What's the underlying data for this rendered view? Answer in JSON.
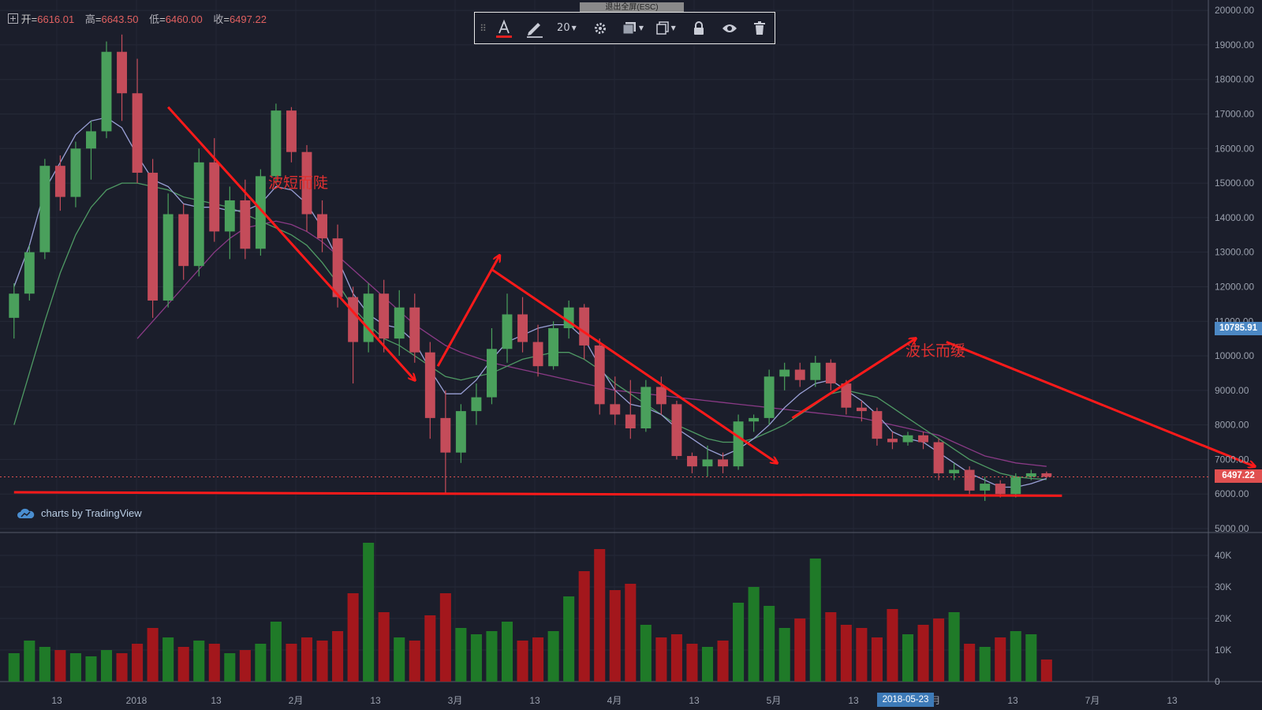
{
  "ohlc_header": {
    "open_label": "开",
    "open": "6616.01",
    "high_label": "高",
    "high": "6643.50",
    "low_label": "低",
    "low": "6460.00",
    "close_label": "收",
    "close": "6497.22"
  },
  "exit_fullscreen": "退出全屏(ESC)",
  "toolbar": {
    "drag_icon": "drag-handle-icon",
    "text_icon": "text-tool-icon",
    "brush_icon": "brush-icon",
    "size_value": "20",
    "settings_icon": "gear-icon",
    "layer_icon": "layer-icon",
    "clone_icon": "clone-icon",
    "lock_icon": "lock-icon",
    "visibility_icon": "eye-icon",
    "delete_icon": "trash-icon",
    "accent_color": "#e02020"
  },
  "branding": {
    "label": "charts by TradingView",
    "icon": "tradingview-cloud-icon"
  },
  "annotations": {
    "left_text": "波短而陡",
    "right_text": "波长而缓"
  },
  "price_tags": {
    "crosshair_price": "10785.91",
    "last_price": "6497.22"
  },
  "date_tag": "2018-05-23",
  "colors": {
    "background": "#1b1e2b",
    "up": "#4aa05c",
    "down": "#c44c5a",
    "vol_up": "#1f7a28",
    "vol_down": "#a3171c",
    "trend_line": "#ff1a1a",
    "ma_fast": "#9aa0d6",
    "ma_mid": "#4f9a64",
    "ma_slow": "#8a3a86",
    "crosshair_tag": "#4c88c4",
    "last_tag": "#e05050"
  },
  "chart_data": {
    "type": "candlestick",
    "title": "",
    "price_axis": {
      "ticks": [
        "5000.00",
        "6000.00",
        "7000.00",
        "8000.00",
        "9000.00",
        "10000.00",
        "11000.00",
        "12000.00",
        "13000.00",
        "14000.00",
        "15000.00",
        "16000.00",
        "17000.00",
        "18000.00",
        "19000.00",
        "20000.00"
      ],
      "ylim": [
        5000,
        20300
      ]
    },
    "volume_axis": {
      "ticks": [
        "0",
        "10K",
        "20K",
        "30K",
        "40K"
      ],
      "ylim": [
        0,
        46000
      ]
    },
    "time_axis": {
      "ticks": [
        "13",
        "2018",
        "13",
        "2月",
        "13",
        "3月",
        "13",
        "4月",
        "13",
        "5月",
        "13",
        "6月",
        "13",
        "7月",
        "13"
      ]
    },
    "x_unit": "days since 2017-12-07 (bar index)",
    "candles": [
      [
        3.0,
        11100,
        12100,
        10500,
        11800
      ],
      [
        1.0,
        11800,
        13200,
        11600,
        13000
      ],
      [
        5.0,
        13000,
        15700,
        12800,
        15500
      ],
      [
        3.0,
        15500,
        15800,
        14200,
        14600
      ],
      [
        2.0,
        14600,
        16200,
        14300,
        16000
      ],
      [
        4.0,
        16000,
        16800,
        15100,
        16500
      ],
      [
        4.0,
        16500,
        19100,
        16300,
        18800
      ],
      [
        3.0,
        18800,
        19300,
        16800,
        17600
      ],
      [
        2.0,
        17600,
        18600,
        15000,
        15300
      ],
      [
        4.0,
        15300,
        15700,
        11100,
        11600
      ],
      [
        2.0,
        11600,
        14700,
        11400,
        14100
      ],
      [
        5.0,
        14100,
        14400,
        12200,
        12600
      ],
      [
        4.0,
        12600,
        16000,
        12300,
        15600
      ],
      [
        3.0,
        15600,
        16300,
        13300,
        13600
      ],
      [
        5.0,
        13600,
        14900,
        12800,
        14500
      ],
      [
        4.0,
        14500,
        15100,
        12800,
        13100
      ],
      [
        5.0,
        13100,
        15400,
        12900,
        15200
      ],
      [
        3.0,
        15200,
        17300,
        15000,
        17100
      ],
      [
        2.0,
        17100,
        17200,
        15600,
        15900
      ],
      [
        4.0,
        15900,
        16100,
        13600,
        14100
      ],
      [
        5.0,
        14100,
        14500,
        13000,
        13400
      ],
      [
        5.0,
        13400,
        13800,
        11400,
        11700
      ],
      [
        4.0,
        11700,
        12000,
        9200,
        10400
      ],
      [
        5.0,
        10400,
        12100,
        10100,
        11800
      ],
      [
        4.0,
        11800,
        12200,
        10100,
        10500
      ],
      [
        5.0,
        10500,
        11900,
        10000,
        11400
      ],
      [
        4.0,
        11400,
        11800,
        9800,
        10100
      ],
      [
        4.0,
        10100,
        10400,
        7600,
        8200
      ],
      [
        3.0,
        8200,
        9000,
        6000,
        7200
      ],
      [
        5.0,
        7200,
        8600,
        6900,
        8400
      ],
      [
        3.0,
        8400,
        9200,
        8000,
        8800
      ],
      [
        4.0,
        8800,
        10800,
        8600,
        10200
      ],
      [
        5.0,
        10200,
        11800,
        9800,
        11200
      ],
      [
        3.0,
        11200,
        11700,
        10100,
        10400
      ],
      [
        5.0,
        10400,
        10900,
        9400,
        9700
      ],
      [
        4.0,
        9700,
        11000,
        9600,
        10800
      ],
      [
        4.0,
        10800,
        11600,
        10500,
        11400
      ],
      [
        5.0,
        11400,
        11500,
        9900,
        10300
      ],
      [
        5.0,
        10300,
        10500,
        8300,
        8600
      ],
      [
        4.0,
        8600,
        9400,
        8000,
        8300
      ],
      [
        5.0,
        8300,
        9300,
        7600,
        7900
      ],
      [
        4.0,
        7900,
        9300,
        7800,
        9100
      ],
      [
        4.0,
        9100,
        9400,
        8300,
        8600
      ],
      [
        5.0,
        8600,
        8700,
        7000,
        7100
      ],
      [
        4.0,
        7100,
        7200,
        6600,
        6800
      ],
      [
        5.0,
        6800,
        7400,
        6500,
        7000
      ],
      [
        5.0,
        7000,
        7200,
        6600,
        6800
      ],
      [
        4.0,
        6800,
        8300,
        6700,
        8100
      ],
      [
        5.0,
        8100,
        8300,
        7800,
        8200
      ],
      [
        3.0,
        8200,
        9600,
        8000,
        9400
      ],
      [
        4.0,
        9400,
        9800,
        9000,
        9600
      ],
      [
        5.0,
        9600,
        9800,
        9100,
        9300
      ],
      [
        3.0,
        9300,
        10000,
        9100,
        9800
      ],
      [
        3.0,
        9800,
        9900,
        9000,
        9200
      ],
      [
        3.0,
        9200,
        9300,
        8300,
        8500
      ],
      [
        4.0,
        8500,
        8700,
        8100,
        8400
      ],
      [
        4.0,
        8400,
        8500,
        7400,
        7600
      ],
      [
        3.0,
        7600,
        7800,
        7300,
        7500
      ],
      [
        5.0,
        7500,
        7800,
        7400,
        7700
      ],
      [
        4.0,
        7700,
        7800,
        7300,
        7500
      ],
      [
        4.0,
        7500,
        7600,
        6400,
        6600
      ],
      [
        3.0,
        6600,
        6900,
        6400,
        6700
      ],
      [
        4.0,
        6700,
        6800,
        6000,
        6100
      ],
      [
        4.0,
        6100,
        6500,
        5800,
        6300
      ],
      [
        5.0,
        6300,
        6400,
        5900,
        6000
      ],
      [
        4.0,
        6000,
        6600,
        5900,
        6500
      ],
      [
        5.0,
        6500,
        6700,
        6400,
        6600
      ],
      [
        3.0,
        6600,
        6650,
        6460,
        6497
      ]
    ],
    "volumes": [
      9000,
      13000,
      11000,
      10000,
      9000,
      8000,
      10000,
      9000,
      12000,
      17000,
      14000,
      11000,
      13000,
      12000,
      9000,
      10000,
      12000,
      19000,
      12000,
      14000,
      13000,
      16000,
      28000,
      44000,
      22000,
      14000,
      13000,
      21000,
      28000,
      17000,
      15000,
      16000,
      19000,
      13000,
      14000,
      16000,
      27000,
      35000,
      42000,
      29000,
      31000,
      18000,
      14000,
      15000,
      12000,
      11000,
      13000,
      25000,
      30000,
      24000,
      17000,
      20000,
      39000,
      22000,
      18000,
      17000,
      14000,
      23000,
      15000,
      18000,
      20000,
      22000,
      12000,
      11000,
      14000,
      16000,
      15000,
      7000
    ],
    "ma_fast_values": [
      12000,
      13200,
      14800,
      15600,
      16400,
      16800,
      16900,
      16600,
      15800,
      15100,
      14900,
      14400,
      14300,
      14300,
      14200,
      14200,
      14400,
      14900,
      14800,
      14400,
      13700,
      12800,
      11800,
      11200,
      10900,
      10800,
      10400,
      9600,
      8900,
      8900,
      9300,
      9900,
      10400,
      10600,
      10800,
      10900,
      10900,
      10500,
      9700,
      9000,
      8600,
      8500,
      8300,
      7900,
      7600,
      7300,
      7100,
      7300,
      7600,
      8000,
      8500,
      8900,
      9200,
      9300,
      9000,
      8700,
      8300,
      7800,
      7600,
      7500,
      7200,
      6900,
      6600,
      6400,
      6200,
      6200,
      6300,
      6450
    ],
    "ma_mid_values": [
      8000,
      9500,
      11000,
      12400,
      13500,
      14300,
      14800,
      15000,
      15000,
      14900,
      14800,
      14600,
      14500,
      14400,
      14300,
      14100,
      13900,
      13700,
      13500,
      13200,
      12700,
      12100,
      11400,
      10900,
      10500,
      10300,
      10000,
      9700,
      9400,
      9300,
      9400,
      9500,
      9700,
      9900,
      10000,
      10100,
      10100,
      9900,
      9600,
      9200,
      8900,
      8600,
      8300,
      8000,
      7800,
      7600,
      7500,
      7500,
      7600,
      7800,
      8000,
      8300,
      8600,
      8900,
      9000,
      8900,
      8800,
      8500,
      8200,
      7900,
      7600,
      7300,
      7000,
      6800,
      6600,
      6500,
      6450,
      6420
    ],
    "ma_slow_values": [
      null,
      null,
      null,
      null,
      null,
      null,
      null,
      null,
      10500,
      11000,
      11500,
      12000,
      12500,
      13000,
      13400,
      13700,
      13800,
      13900,
      13800,
      13600,
      13300,
      12900,
      12500,
      12100,
      11700,
      11300,
      10900,
      10600,
      10300,
      10100,
      9950,
      9800,
      9700,
      9600,
      9500,
      9400,
      9300,
      9200,
      9100,
      9000,
      8950,
      8900,
      8850,
      8800,
      8750,
      8700,
      8650,
      8600,
      8550,
      8500,
      8450,
      8400,
      8350,
      8300,
      8250,
      8200,
      8100,
      8000,
      7900,
      7800,
      7700,
      7500,
      7300,
      7100,
      7000,
      6900,
      6850,
      6800
    ],
    "trend_lines": [
      {
        "name": "support",
        "x0": 0.0,
        "y0": 6050,
        "x1": 68.0,
        "y1": 5950
      },
      {
        "name": "down-1",
        "x0": 10.0,
        "y0": 17200,
        "x1": 26.0,
        "y1": 9300
      },
      {
        "name": "up-1",
        "x0": 27.5,
        "y0": 9700,
        "x1": 31.5,
        "y1": 12900
      },
      {
        "name": "down-2",
        "x0": 31.0,
        "y0": 12500,
        "x1": 49.5,
        "y1": 6900
      },
      {
        "name": "up-2",
        "x0": 50.5,
        "y0": 8200,
        "x1": 58.5,
        "y1": 10500
      },
      {
        "name": "down-3",
        "x0": 60.5,
        "y0": 10400,
        "x1": 80.5,
        "y1": 6800
      }
    ]
  }
}
